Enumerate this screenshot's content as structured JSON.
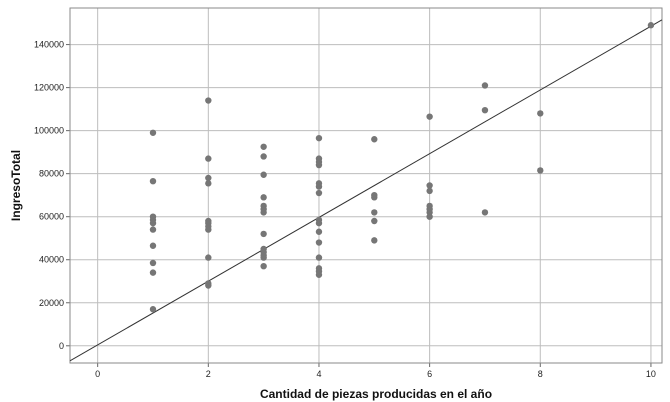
{
  "chart_data": {
    "type": "scatter",
    "title": "",
    "xlabel": "Cantidad de piezas producidas en el año",
    "ylabel": "IngresoTotal",
    "xlim": [
      -0.5,
      10.2
    ],
    "ylim": [
      -8000,
      157000
    ],
    "x_ticks": [
      "0",
      "2",
      "4",
      "6",
      "8",
      "10"
    ],
    "y_ticks": [
      "0",
      "20000",
      "40000",
      "60000",
      "80000",
      "100000",
      "120000",
      "140000"
    ],
    "grid": true,
    "point_color": "#767676",
    "line_color": "#333333",
    "fit_line": {
      "x": [
        -0.5,
        10.2
      ],
      "y": [
        -7000,
        151500
      ]
    },
    "series": [
      {
        "points": [
          {
            "x": 1,
            "y": 99000
          },
          {
            "x": 1,
            "y": 76500
          },
          {
            "x": 1,
            "y": 60000
          },
          {
            "x": 1,
            "y": 58500
          },
          {
            "x": 1,
            "y": 57000
          },
          {
            "x": 1,
            "y": 54000
          },
          {
            "x": 1,
            "y": 46500
          },
          {
            "x": 1,
            "y": 38500
          },
          {
            "x": 1,
            "y": 34000
          },
          {
            "x": 1,
            "y": 17000
          },
          {
            "x": 2,
            "y": 114000
          },
          {
            "x": 2,
            "y": 87000
          },
          {
            "x": 2,
            "y": 78000
          },
          {
            "x": 2,
            "y": 75500
          },
          {
            "x": 2,
            "y": 58000
          },
          {
            "x": 2,
            "y": 57000
          },
          {
            "x": 2,
            "y": 55500
          },
          {
            "x": 2,
            "y": 54000
          },
          {
            "x": 2,
            "y": 41000
          },
          {
            "x": 2,
            "y": 29000
          },
          {
            "x": 2,
            "y": 28000
          },
          {
            "x": 3,
            "y": 92500
          },
          {
            "x": 3,
            "y": 88000
          },
          {
            "x": 3,
            "y": 79500
          },
          {
            "x": 3,
            "y": 69000
          },
          {
            "x": 3,
            "y": 65000
          },
          {
            "x": 3,
            "y": 63500
          },
          {
            "x": 3,
            "y": 62000
          },
          {
            "x": 3,
            "y": 52000
          },
          {
            "x": 3,
            "y": 45000
          },
          {
            "x": 3,
            "y": 43500
          },
          {
            "x": 3,
            "y": 42000
          },
          {
            "x": 3,
            "y": 41000
          },
          {
            "x": 3,
            "y": 37000
          },
          {
            "x": 4,
            "y": 96500
          },
          {
            "x": 4,
            "y": 87000
          },
          {
            "x": 4,
            "y": 85500
          },
          {
            "x": 4,
            "y": 84000
          },
          {
            "x": 4,
            "y": 75500
          },
          {
            "x": 4,
            "y": 74000
          },
          {
            "x": 4,
            "y": 71000
          },
          {
            "x": 4,
            "y": 58500
          },
          {
            "x": 4,
            "y": 57000
          },
          {
            "x": 4,
            "y": 53000
          },
          {
            "x": 4,
            "y": 48000
          },
          {
            "x": 4,
            "y": 41000
          },
          {
            "x": 4,
            "y": 36000
          },
          {
            "x": 4,
            "y": 34500
          },
          {
            "x": 4,
            "y": 33000
          },
          {
            "x": 5,
            "y": 96000
          },
          {
            "x": 5,
            "y": 70000
          },
          {
            "x": 5,
            "y": 69000
          },
          {
            "x": 5,
            "y": 62000
          },
          {
            "x": 5,
            "y": 58000
          },
          {
            "x": 5,
            "y": 49000
          },
          {
            "x": 6,
            "y": 106500
          },
          {
            "x": 6,
            "y": 74500
          },
          {
            "x": 6,
            "y": 72000
          },
          {
            "x": 6,
            "y": 65000
          },
          {
            "x": 6,
            "y": 63500
          },
          {
            "x": 6,
            "y": 62000
          },
          {
            "x": 6,
            "y": 60000
          },
          {
            "x": 7,
            "y": 121000
          },
          {
            "x": 7,
            "y": 109500
          },
          {
            "x": 7,
            "y": 62000
          },
          {
            "x": 8,
            "y": 108000
          },
          {
            "x": 8,
            "y": 81500
          },
          {
            "x": 10,
            "y": 149000
          }
        ]
      }
    ]
  }
}
